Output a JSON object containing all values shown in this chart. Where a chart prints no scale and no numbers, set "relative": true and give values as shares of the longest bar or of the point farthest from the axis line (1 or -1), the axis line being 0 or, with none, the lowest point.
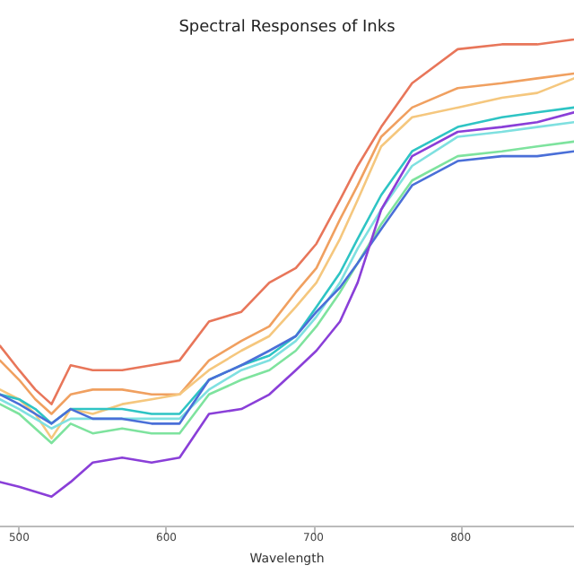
{
  "chart_data": {
    "type": "line",
    "title": "Spectral Responses of Inks",
    "xlabel": "Wavelength",
    "relative": true,
    "tick_labels": "x",
    "grid": false,
    "marker": "none",
    "line_style": "solid",
    "xlim": [
      487,
      877
    ],
    "xticks": [
      500,
      600,
      700,
      800
    ],
    "x": [
      487,
      500,
      511,
      522,
      535,
      550,
      570,
      590,
      609,
      629,
      651,
      670,
      688,
      702,
      718,
      730,
      746,
      767,
      798,
      828,
      852,
      877
    ],
    "series": [
      {
        "color": "#e8765a",
        "values": [
          0.37,
          0.32,
          0.28,
          0.25,
          0.33,
          0.32,
          0.32,
          0.33,
          0.34,
          0.42,
          0.44,
          0.5,
          0.53,
          0.58,
          0.67,
          0.74,
          0.82,
          0.91,
          0.98,
          0.99,
          0.99,
          1.0
        ]
      },
      {
        "color": "#f0a060",
        "values": [
          0.34,
          0.3,
          0.26,
          0.23,
          0.27,
          0.28,
          0.28,
          0.27,
          0.27,
          0.34,
          0.38,
          0.41,
          0.48,
          0.53,
          0.63,
          0.7,
          0.8,
          0.86,
          0.9,
          0.91,
          0.92,
          0.93
        ]
      },
      {
        "color": "#f5c77e",
        "values": [
          0.28,
          0.26,
          0.23,
          0.18,
          0.24,
          0.23,
          0.25,
          0.26,
          0.27,
          0.32,
          0.36,
          0.39,
          0.45,
          0.5,
          0.59,
          0.67,
          0.78,
          0.84,
          0.86,
          0.88,
          0.89,
          0.92
        ]
      },
      {
        "color": "#2ec4c4",
        "values": [
          0.27,
          0.26,
          0.24,
          0.21,
          0.24,
          0.24,
          0.24,
          0.23,
          0.23,
          0.3,
          0.33,
          0.35,
          0.39,
          0.45,
          0.52,
          0.59,
          0.68,
          0.77,
          0.82,
          0.84,
          0.85,
          0.86
        ]
      },
      {
        "color": "#7fe0e0",
        "values": [
          0.26,
          0.24,
          0.22,
          0.2,
          0.22,
          0.22,
          0.22,
          0.22,
          0.22,
          0.28,
          0.32,
          0.34,
          0.38,
          0.43,
          0.5,
          0.57,
          0.65,
          0.74,
          0.8,
          0.81,
          0.82,
          0.83
        ]
      },
      {
        "color": "#7ee39e",
        "values": [
          0.25,
          0.23,
          0.2,
          0.17,
          0.21,
          0.19,
          0.2,
          0.19,
          0.19,
          0.27,
          0.3,
          0.32,
          0.36,
          0.41,
          0.48,
          0.54,
          0.62,
          0.71,
          0.76,
          0.77,
          0.78,
          0.79
        ]
      },
      {
        "color": "#4a6fd8",
        "values": [
          0.27,
          0.25,
          0.23,
          0.21,
          0.24,
          0.22,
          0.22,
          0.21,
          0.21,
          0.3,
          0.33,
          0.36,
          0.39,
          0.44,
          0.49,
          0.54,
          0.61,
          0.7,
          0.75,
          0.76,
          0.76,
          0.77
        ]
      },
      {
        "color": "#8a3fd8",
        "values": [
          0.09,
          0.08,
          0.07,
          0.06,
          0.09,
          0.13,
          0.14,
          0.13,
          0.14,
          0.23,
          0.24,
          0.27,
          0.32,
          0.36,
          0.42,
          0.5,
          0.65,
          0.76,
          0.81,
          0.82,
          0.83,
          0.85
        ]
      }
    ]
  }
}
